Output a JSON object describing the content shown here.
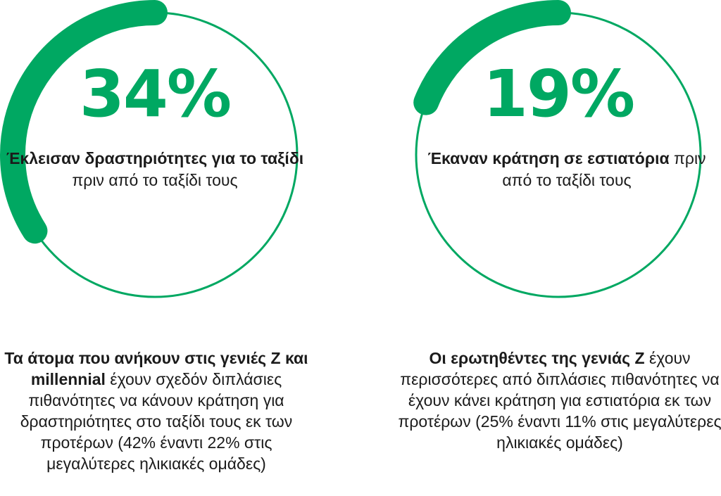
{
  "colors": {
    "accent": "#00a862",
    "text": "#1b1b1b"
  },
  "stats": [
    {
      "percent": "34%",
      "value": 0.34,
      "label_bold": "Έκλεισαν δραστηριότητες για το ταξίδι",
      "label_rest": " πριν από το ταξίδι τους",
      "note_bold": "Τα άτομα που ανήκουν στις γενιές Z και millennial",
      "note_rest": " έχουν σχεδόν διπλάσιες πιθανότητες να κάνουν κράτηση για δραστηριότητες στο ταξίδι τους εκ των προτέρων (42% έναντι 22% στις μεγαλύτερες ηλικιακές ομάδες)"
    },
    {
      "percent": "19%",
      "value": 0.19,
      "label_bold": "Έκαναν κράτηση σε εστιατόρια",
      "label_rest": " πριν από το ταξίδι τους",
      "note_bold": "Οι ερωτηθέντες της γενιάς Z",
      "note_rest": " έχουν περισσότερες από διπλάσιες πιθανότητες να έχουν κάνει κράτηση για εστιατόρια εκ των προτέρων (25% έναντι 11% στις μεγαλύτερες ηλικιακές ομάδες)"
    }
  ]
}
